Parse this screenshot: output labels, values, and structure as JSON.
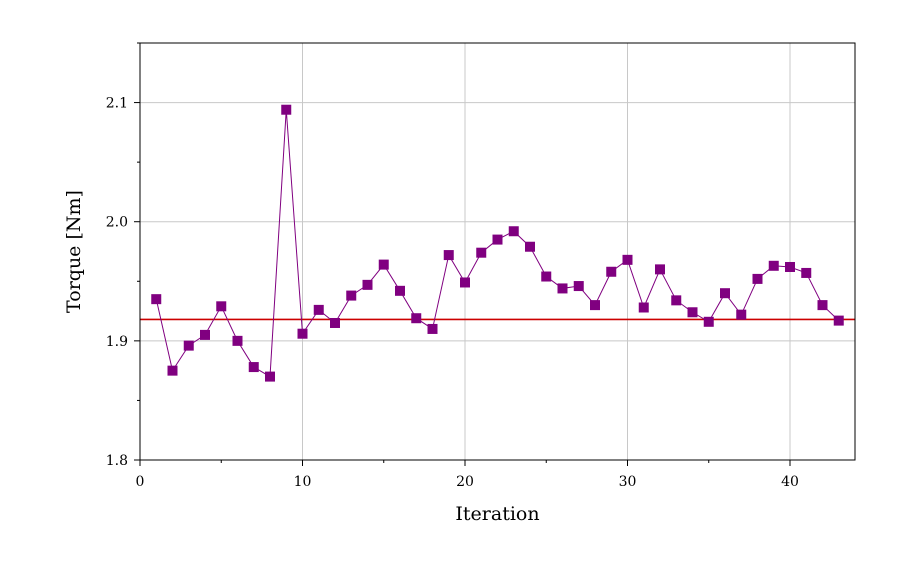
{
  "chart_data": {
    "type": "line",
    "title": "",
    "xlabel": "Iteration",
    "ylabel": "Torque [Nm]",
    "xlim": [
      0,
      44
    ],
    "ylim": [
      1.8,
      2.15
    ],
    "x_ticks": [
      0,
      10,
      20,
      30,
      40
    ],
    "y_ticks": [
      1.8,
      1.9,
      2.0,
      2.1
    ],
    "x_tick_labels": [
      "0",
      "10",
      "20",
      "30",
      "40"
    ],
    "y_tick_labels": [
      "1.8",
      "1.9",
      "2.0",
      "2.1"
    ],
    "x_minor_step": 5,
    "y_minor_step": 0.05,
    "grid": true,
    "legend": "none",
    "series": [
      {
        "marker": "square",
        "color": "#800080",
        "x": [
          1,
          2,
          3,
          4,
          5,
          6,
          7,
          8,
          9,
          10,
          11,
          12,
          13,
          14,
          15,
          16,
          17,
          18,
          19,
          20,
          21,
          22,
          23,
          24,
          25,
          26,
          27,
          28,
          29,
          30,
          31,
          32,
          33,
          34,
          35,
          36,
          37,
          38,
          39,
          40,
          41,
          42,
          43
        ],
        "y": [
          1.935,
          1.875,
          1.896,
          1.905,
          1.929,
          1.9,
          1.878,
          1.87,
          2.094,
          1.906,
          1.926,
          1.915,
          1.938,
          1.947,
          1.964,
          1.942,
          1.919,
          1.91,
          1.972,
          1.949,
          1.974,
          1.985,
          1.992,
          1.979,
          1.954,
          1.944,
          1.946,
          1.93,
          1.958,
          1.968,
          1.928,
          1.96,
          1.934,
          1.924,
          1.916,
          1.94,
          1.922,
          1.952,
          1.963,
          1.962,
          1.957,
          1.93,
          1.917
        ]
      }
    ],
    "reference_line": {
      "y": 1.918,
      "color": "#cc0000"
    },
    "colors": {
      "frame": "#000000",
      "grid": "#c8c8c8",
      "marker": "#800080",
      "line": "#800080",
      "reference": "#cc0000"
    }
  }
}
